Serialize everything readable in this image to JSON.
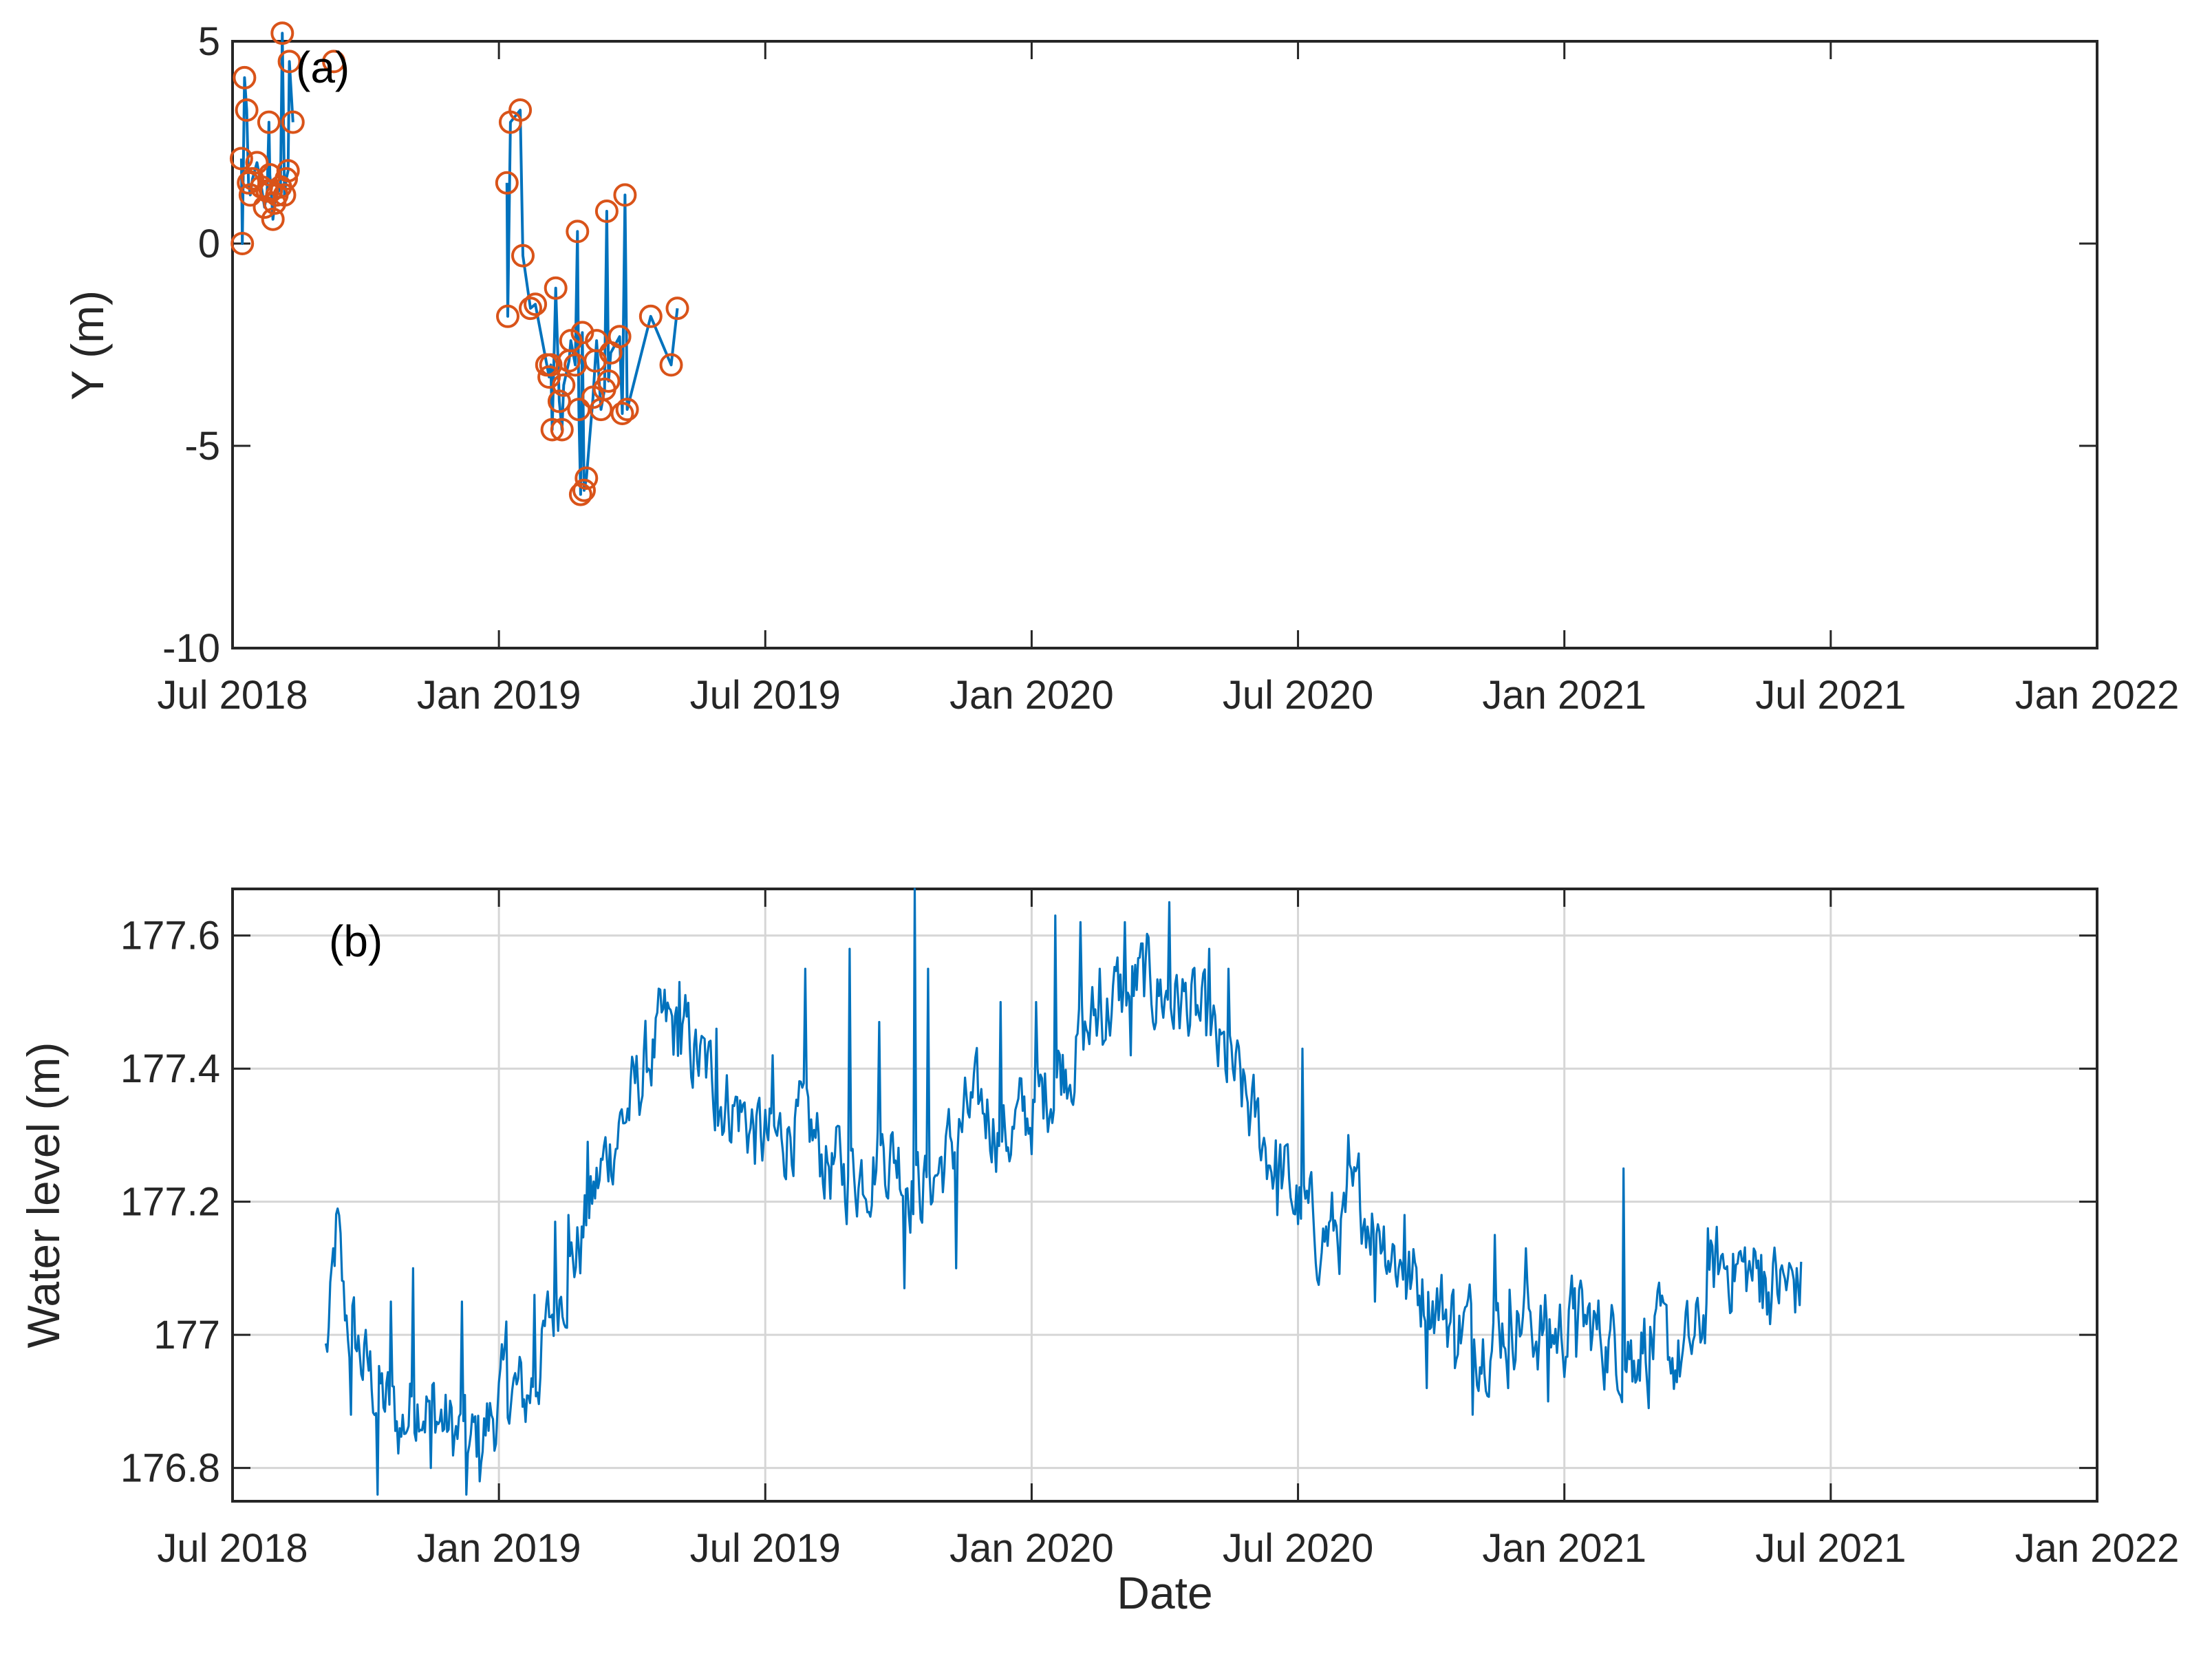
{
  "colors": {
    "line": "#0072BD",
    "marker": "#D95319",
    "axes": "#262626",
    "grid": "#d6d6d6"
  },
  "chart_data": [
    {
      "type": "line",
      "panel": "(a)",
      "xlabel": "",
      "ylabel": "Y (m)",
      "x_ticks": [
        "Jul 2018",
        "Jan 2019",
        "Jul 2019",
        "Jan 2020",
        "Jul 2020",
        "Jan 2021",
        "Jul 2021",
        "Jan 2022"
      ],
      "ylim": [
        -10,
        5
      ],
      "y_ticks": [
        "5",
        "0",
        "-5",
        "-10"
      ],
      "grid": false,
      "markers": "circle",
      "x_unit": "months since Jul 2018",
      "series": [
        {
          "name": "Y",
          "segments": [
            [
              [
                0.2,
                2.1
              ],
              [
                0.22,
                0.0
              ],
              [
                0.27,
                4.1
              ],
              [
                0.32,
                3.3
              ],
              [
                0.36,
                1.5
              ],
              [
                0.4,
                1.2
              ],
              [
                0.45,
                1.6
              ],
              [
                0.55,
                2.0
              ],
              [
                0.65,
                1.4
              ],
              [
                0.72,
                0.9
              ],
              [
                0.78,
                1.3
              ],
              [
                0.82,
                3.0
              ],
              [
                0.84,
                1.7
              ],
              [
                0.87,
                1.3
              ],
              [
                0.91,
                0.6
              ],
              [
                0.95,
                1.0
              ],
              [
                1.0,
                1.2
              ],
              [
                1.08,
                1.4
              ],
              [
                1.12,
                5.2
              ],
              [
                1.17,
                1.2
              ],
              [
                1.21,
                1.6
              ],
              [
                1.25,
                1.8
              ],
              [
                1.28,
                4.5
              ],
              [
                1.36,
                3.0
              ]
            ],
            [
              [
                2.28,
                4.5
              ]
            ],
            [
              [
                6.18,
                1.5
              ],
              [
                6.2,
                -1.8
              ],
              [
                6.26,
                3.0
              ],
              [
                6.48,
                3.3
              ],
              [
                6.54,
                -0.3
              ],
              [
                6.71,
                -1.6
              ],
              [
                6.82,
                -1.5
              ],
              [
                7.08,
                -3.0
              ],
              [
                7.13,
                -3.3
              ],
              [
                7.17,
                -3.0
              ],
              [
                7.2,
                -4.6
              ],
              [
                7.28,
                -1.1
              ],
              [
                7.36,
                -3.9
              ],
              [
                7.42,
                -4.6
              ],
              [
                7.46,
                -3.5
              ],
              [
                7.58,
                -2.9
              ],
              [
                7.62,
                -2.4
              ],
              [
                7.72,
                -3.0
              ],
              [
                7.77,
                0.3
              ],
              [
                7.8,
                -4.1
              ],
              [
                7.84,
                -6.2
              ],
              [
                7.88,
                -2.2
              ],
              [
                7.92,
                -6.1
              ],
              [
                7.97,
                -5.8
              ],
              [
                8.12,
                -3.8
              ],
              [
                8.17,
                -2.9
              ],
              [
                8.2,
                -2.4
              ],
              [
                8.3,
                -4.1
              ],
              [
                8.38,
                -3.6
              ],
              [
                8.43,
                0.8
              ],
              [
                8.47,
                -3.4
              ],
              [
                8.52,
                -2.7
              ],
              [
                8.72,
                -2.3
              ],
              [
                8.78,
                -4.2
              ],
              [
                8.84,
                1.2
              ],
              [
                8.89,
                -4.1
              ],
              [
                9.42,
                -1.8
              ],
              [
                9.88,
                -3.0
              ],
              [
                10.02,
                -1.6
              ]
            ]
          ]
        }
      ]
    },
    {
      "type": "line",
      "panel": "(b)",
      "xlabel": "Date",
      "ylabel": "Water level (m)",
      "x_ticks": [
        "Jul 2018",
        "Jan 2019",
        "Jul 2019",
        "Jan 2020",
        "Jul 2020",
        "Jan 2021",
        "Jul 2021",
        "Jan 2022"
      ],
      "ylim": [
        176.75,
        177.67
      ],
      "y_ticks": [
        "176.8",
        "177",
        "177.2",
        "177.4",
        "177.6"
      ],
      "grid": true,
      "x_unit": "months since Jul 2018",
      "series": [
        {
          "name": "Water level",
          "points": [
            [
              2.1,
              176.97
            ],
            [
              2.2,
              177.02
            ],
            [
              2.35,
              177.16
            ],
            [
              2.5,
              177.04
            ],
            [
              2.7,
              177.0
            ],
            [
              3.0,
              176.95
            ],
            [
              3.4,
              176.9
            ],
            [
              3.8,
              176.86
            ],
            [
              4.2,
              176.92
            ],
            [
              4.6,
              176.88
            ],
            [
              5.0,
              176.85
            ],
            [
              5.4,
              176.83
            ],
            [
              5.8,
              176.87
            ],
            [
              6.2,
              176.92
            ],
            [
              6.6,
              176.9
            ],
            [
              7.0,
              176.98
            ],
            [
              7.4,
              177.08
            ],
            [
              7.8,
              177.13
            ],
            [
              8.2,
              177.22
            ],
            [
              8.6,
              177.3
            ],
            [
              9.0,
              177.35
            ],
            [
              9.4,
              177.42
            ],
            [
              9.8,
              177.46
            ],
            [
              10.2,
              177.44
            ],
            [
              10.6,
              177.4
            ],
            [
              11.0,
              177.36
            ],
            [
              11.4,
              177.34
            ],
            [
              11.8,
              177.3
            ],
            [
              12.2,
              177.28
            ],
            [
              12.6,
              177.32
            ],
            [
              13.0,
              177.3
            ],
            [
              13.4,
              177.26
            ],
            [
              13.8,
              177.24
            ],
            [
              14.2,
              177.25
            ],
            [
              14.6,
              177.28
            ],
            [
              15.0,
              177.27
            ],
            [
              15.4,
              177.22
            ],
            [
              15.8,
              177.24
            ],
            [
              16.2,
              177.28
            ],
            [
              16.6,
              177.33
            ],
            [
              17.0,
              177.34
            ],
            [
              17.4,
              177.3
            ],
            [
              17.8,
              177.32
            ],
            [
              18.2,
              177.35
            ],
            [
              18.6,
              177.4
            ],
            [
              19.0,
              177.43
            ],
            [
              19.4,
              177.47
            ],
            [
              19.8,
              177.5
            ],
            [
              20.2,
              177.52
            ],
            [
              20.6,
              177.53
            ],
            [
              21.0,
              177.51
            ],
            [
              21.4,
              177.5
            ],
            [
              21.8,
              177.47
            ],
            [
              22.2,
              177.42
            ],
            [
              22.6,
              177.38
            ],
            [
              23.0,
              177.32
            ],
            [
              23.4,
              177.27
            ],
            [
              23.8,
              177.22
            ],
            [
              24.2,
              177.17
            ],
            [
              24.6,
              177.15
            ],
            [
              25.0,
              177.16
            ],
            [
              25.4,
              177.2
            ],
            [
              25.8,
              177.18
            ],
            [
              26.2,
              177.12
            ],
            [
              26.6,
              177.08
            ],
            [
              27.0,
              177.06
            ],
            [
              27.4,
              177.03
            ],
            [
              27.8,
              177.01
            ],
            [
              28.2,
              177.0
            ],
            [
              28.6,
              177.02
            ],
            [
              29.0,
              177.03
            ],
            [
              29.4,
              177.01
            ],
            [
              29.8,
              177.0
            ],
            [
              30.2,
              177.02
            ],
            [
              30.6,
              177.01
            ],
            [
              31.0,
              176.99
            ],
            [
              31.4,
              176.98
            ],
            [
              31.8,
              177.0
            ],
            [
              32.2,
              176.98
            ],
            [
              32.6,
              176.96
            ],
            [
              33.0,
              176.99
            ],
            [
              33.4,
              177.1
            ],
            [
              33.8,
              177.11
            ],
            [
              34.2,
              177.09
            ],
            [
              34.6,
              177.08
            ],
            [
              35.0,
              177.07
            ],
            [
              35.35,
              177.08
            ]
          ],
          "spikes": [
            [
              2.65,
              176.88
            ],
            [
              3.25,
              176.76
            ],
            [
              3.55,
              177.05
            ],
            [
              4.05,
              177.1
            ],
            [
              4.45,
              176.8
            ],
            [
              5.15,
              177.05
            ],
            [
              5.25,
              176.76
            ],
            [
              5.55,
              176.78
            ],
            [
              6.15,
              177.02
            ],
            [
              6.8,
              177.06
            ],
            [
              7.25,
              177.17
            ],
            [
              7.55,
              177.18
            ],
            [
              8.0,
              177.29
            ],
            [
              9.35,
              177.4
            ],
            [
              10.05,
              177.53
            ],
            [
              10.9,
              177.46
            ],
            [
              12.15,
              177.42
            ],
            [
              12.9,
              177.55
            ],
            [
              13.9,
              177.58
            ],
            [
              14.55,
              177.47
            ],
            [
              15.12,
              177.07
            ],
            [
              15.35,
              177.67
            ],
            [
              15.65,
              177.55
            ],
            [
              16.3,
              177.1
            ],
            [
              17.3,
              177.5
            ],
            [
              18.1,
              177.5
            ],
            [
              18.55,
              177.63
            ],
            [
              19.1,
              177.62
            ],
            [
              19.55,
              177.55
            ],
            [
              20.1,
              177.62
            ],
            [
              20.25,
              177.42
            ],
            [
              21.1,
              177.65
            ],
            [
              21.5,
              177.48
            ],
            [
              22.0,
              177.58
            ],
            [
              22.45,
              177.55
            ],
            [
              23.55,
              177.18
            ],
            [
              24.1,
              177.43
            ],
            [
              24.5,
              177.1
            ],
            [
              25.15,
              177.3
            ],
            [
              25.75,
              177.05
            ],
            [
              26.4,
              177.18
            ],
            [
              26.9,
              176.92
            ],
            [
              27.55,
              176.95
            ],
            [
              27.95,
              176.88
            ],
            [
              28.45,
              177.15
            ],
            [
              28.75,
              176.92
            ],
            [
              29.15,
              177.13
            ],
            [
              29.65,
              176.9
            ],
            [
              30.25,
              177.07
            ],
            [
              30.7,
              177.03
            ],
            [
              31.35,
              177.25
            ],
            [
              31.55,
              176.93
            ],
            [
              31.9,
              176.89
            ],
            [
              33.25,
              177.16
            ],
            [
              34.05,
              177.11
            ],
            [
              34.45,
              177.12
            ]
          ]
        }
      ]
    }
  ]
}
